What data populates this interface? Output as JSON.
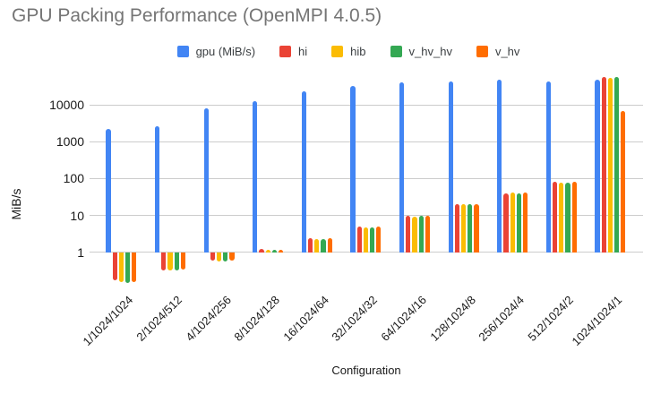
{
  "chart_data": {
    "type": "bar",
    "title": "GPU Packing Performance (OpenMPI 4.0.5)",
    "xlabel": "Configuration",
    "ylabel": "MiB/s",
    "y_scale": "log",
    "ylim": [
      0.1,
      60000
    ],
    "y_ticks": [
      1,
      10,
      100,
      1000,
      10000
    ],
    "grid": true,
    "legend_position": "top",
    "categories": [
      "1/1024/1024",
      "2/1024/512",
      "4/1024/256",
      "8/1024/128",
      "16/1024/64",
      "32/1024/32",
      "64/1024/16",
      "128/1024/8",
      "256/1024/4",
      "512/1024/2",
      "1024/1024/1"
    ],
    "series": [
      {
        "name": "gpu (MiB/s)",
        "color": "#4285F4",
        "values": [
          2200,
          2600,
          8000,
          12800,
          23500,
          32500,
          41500,
          43500,
          47000,
          43500,
          47000
        ]
      },
      {
        "name": "hi",
        "color": "#EA4335",
        "values": [
          0.17,
          0.33,
          0.6,
          1.25,
          2.4,
          4.9,
          9.7,
          20.5,
          40,
          80,
          56000
        ]
      },
      {
        "name": "hib",
        "color": "#FBBC04",
        "values": [
          0.16,
          0.32,
          0.58,
          1.2,
          2.3,
          4.7,
          9.5,
          20.0,
          41,
          79,
          55000
        ]
      },
      {
        "name": "v_hv_hv",
        "color": "#34A853",
        "values": [
          0.15,
          0.32,
          0.58,
          1.2,
          2.3,
          4.7,
          9.6,
          20.0,
          40,
          79,
          56500
        ]
      },
      {
        "name": "v_hv",
        "color": "#FF6D01",
        "values": [
          0.155,
          0.35,
          0.6,
          1.2,
          2.45,
          5.0,
          9.8,
          20.5,
          41,
          80,
          6700
        ]
      }
    ],
    "colors": {
      "grid": "#cccccc",
      "title_text": "#757575",
      "axis_text": "#1a1a1a",
      "legend_text": "#3c4043"
    }
  }
}
